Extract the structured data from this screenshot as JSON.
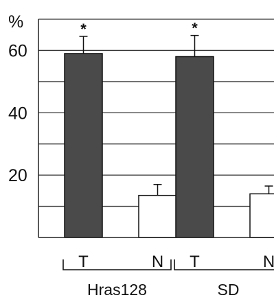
{
  "chart_data": {
    "type": "bar",
    "ylabel": "%",
    "ylim": [
      0,
      70
    ],
    "y_ticks": [
      20,
      40,
      60
    ],
    "gridlines_every": 10,
    "grid": true,
    "groups": [
      {
        "name": "Hras128",
        "bars": [
          {
            "category": "T",
            "value": 59,
            "error": 5.5,
            "significance": "*",
            "color": "#4a4a4a"
          },
          {
            "category": "N",
            "value": 13.5,
            "error": 3.5,
            "significance": "",
            "color": "#ffffff"
          }
        ]
      },
      {
        "name": "SD",
        "bars": [
          {
            "category": "T",
            "value": 58,
            "error": 6.8,
            "significance": "*",
            "color": "#4a4a4a"
          },
          {
            "category": "N",
            "value": 14,
            "error": 2.5,
            "significance": "",
            "color": "#ffffff"
          }
        ]
      }
    ]
  }
}
